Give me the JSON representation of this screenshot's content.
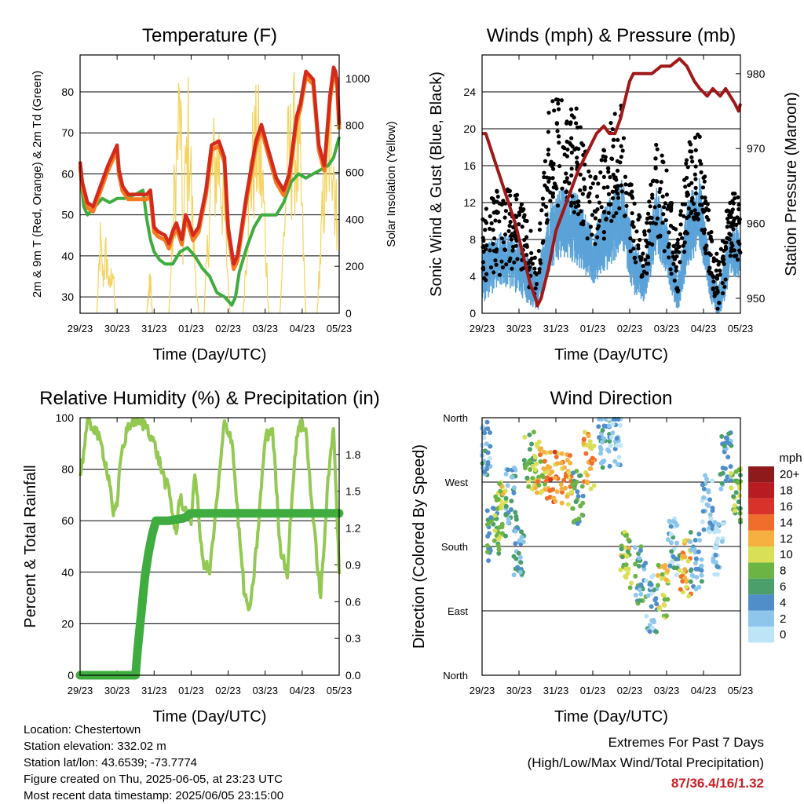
{
  "panels": {
    "temperature": {
      "title": "Temperature (F)",
      "xlabel": "Time (Day/UTC)",
      "ylabel_left": "2m & 9m T (Red, Orange) & 2m Td (Green)",
      "ylabel_right": "Solar Insolation (Yellow)"
    },
    "winds": {
      "title": "Winds (mph) & Pressure (mb)",
      "xlabel": "Time (Day/UTC)",
      "ylabel_left": "Sonic Wind & Gust (Blue, Black)",
      "ylabel_right": "Station Pressure (Maroon)"
    },
    "humidity": {
      "title": "Relative Humidity (%) & Precipitation (in)",
      "xlabel": "Time (Day/UTC)",
      "ylabel_left": "Percent & Total Rainfall"
    },
    "direction": {
      "title": "Wind Direction",
      "xlabel": "Time (Day/UTC)",
      "ylabel_left": "Direction (Colored By Speed)",
      "legend_title": "mph"
    }
  },
  "x_ticks": [
    "29/23",
    "30/23",
    "31/23",
    "01/23",
    "02/23",
    "03/23",
    "04/23",
    "05/23"
  ],
  "footer": {
    "location": "Location: Chestertown",
    "elevation": "Station elevation: 332.02 m",
    "latlon": "Station lat/lon: 43.6539; -73.7774",
    "created": "Figure created on Thu, 2025-06-05, at 23:23 UTC",
    "recent": "Most recent data timestamp: 2025/06/05 23:15:00"
  },
  "extremes": {
    "title": "Extremes For Past 7 Days",
    "subtitle": "(High/Low/Max Wind/Total Precipitation)",
    "values": "87/36.4/16/1.32"
  },
  "chart_data": [
    {
      "type": "line",
      "id": "temperature",
      "x_range_days": [
        0,
        7
      ],
      "ylim": [
        26,
        89
      ],
      "yticks": [
        30,
        40,
        50,
        60,
        70,
        80
      ],
      "y2lim": [
        0,
        1100
      ],
      "y2ticks": [
        0,
        200,
        400,
        600,
        800,
        1000
      ],
      "colors": {
        "t2m": "#d42a1c",
        "t9m": "#f47b20",
        "td": "#3fac3f",
        "solar": "#f4d35e"
      },
      "series": [
        {
          "key": "t2m",
          "x": [
            0,
            0.06,
            0.2,
            0.35,
            0.55,
            0.75,
            0.95,
            1.0,
            1.05,
            1.15,
            1.3,
            1.5,
            1.7,
            1.8,
            1.9,
            2.0,
            2.1,
            2.3,
            2.4,
            2.5,
            2.6,
            2.75,
            2.85,
            2.95,
            3.05,
            3.2,
            3.4,
            3.55,
            3.75,
            3.9,
            4.0,
            4.15,
            4.25,
            4.5,
            4.75,
            4.9,
            5.05,
            5.3,
            5.5,
            5.65,
            5.85,
            5.95,
            6.1,
            6.3,
            6.45,
            6.6,
            6.75,
            6.85,
            6.9,
            6.95,
            7.0
          ],
          "values": [
            63,
            58,
            53,
            52,
            57,
            62,
            66,
            67,
            61,
            57,
            55,
            55,
            55,
            55,
            56,
            47,
            46,
            45,
            43,
            46,
            48,
            44,
            50,
            48,
            45,
            47,
            56,
            67,
            68,
            64,
            47,
            38,
            40,
            55,
            68,
            72,
            67,
            59,
            56,
            60,
            74,
            77,
            85,
            83,
            67,
            62,
            79,
            86,
            85,
            82,
            72
          ]
        },
        {
          "key": "td",
          "x": [
            0,
            0.1,
            0.2,
            0.4,
            0.6,
            0.8,
            1.0,
            1.2,
            1.5,
            1.7,
            1.8,
            1.9,
            2.0,
            2.15,
            2.3,
            2.5,
            2.7,
            2.9,
            3.1,
            3.3,
            3.5,
            3.7,
            3.9,
            4.1,
            4.2,
            4.3,
            4.5,
            4.7,
            4.9,
            5.1,
            5.3,
            5.5,
            5.7,
            5.9,
            6.1,
            6.3,
            6.5,
            6.7,
            6.85,
            7.0
          ],
          "values": [
            61,
            52,
            50,
            52,
            54,
            53,
            54,
            54,
            55,
            56,
            49,
            44,
            41,
            39,
            38,
            38,
            41,
            42,
            40,
            37,
            35,
            31,
            30,
            28,
            30,
            36,
            42,
            47,
            50,
            50,
            50,
            53,
            58,
            60,
            59,
            60,
            61,
            62,
            64,
            69
          ]
        },
        {
          "key": "solar",
          "bursts": [
            {
              "x": [
                0.45,
                0.55,
                0.62,
                0.7,
                0.8,
                0.88,
                0.95
              ],
              "values": [
                0,
                350,
                180,
                300,
                120,
                250,
                0
              ]
            },
            {
              "x": [
                1.8,
                1.9,
                1.95
              ],
              "values": [
                0,
                200,
                0
              ]
            },
            {
              "x": [
                2.4,
                2.55,
                2.7,
                2.78,
                2.85,
                2.95,
                3.05,
                3.2
              ],
              "values": [
                0,
                600,
                1050,
                350,
                700,
                950,
                400,
                0
              ]
            },
            {
              "x": [
                3.35,
                3.55,
                3.75,
                3.9,
                4.05
              ],
              "values": [
                0,
                700,
                800,
                500,
                0
              ]
            },
            {
              "x": [
                4.4,
                4.6,
                4.8,
                4.95,
                5.1
              ],
              "values": [
                0,
                700,
                860,
                600,
                0
              ]
            },
            {
              "x": [
                5.4,
                5.6,
                5.8,
                5.95,
                6.1
              ],
              "values": [
                0,
                750,
                880,
                700,
                0
              ]
            },
            {
              "x": [
                6.4,
                6.6,
                6.8,
                6.95
              ],
              "values": [
                0,
                650,
                980,
                400
              ]
            }
          ]
        }
      ]
    },
    {
      "type": "scatter",
      "id": "winds",
      "x_range_days": [
        0,
        7
      ],
      "ylim": [
        0,
        28
      ],
      "yticks": [
        0,
        4,
        8,
        12,
        16,
        20,
        24
      ],
      "y2lim": [
        948,
        982.5
      ],
      "y2ticks": [
        950,
        960,
        970,
        980
      ],
      "colors": {
        "wind": "#5ba3d8",
        "gust": "#000000",
        "pressure": "#a01818"
      },
      "series": [
        {
          "key": "pressure",
          "x": [
            0,
            0.1,
            0.3,
            0.5,
            0.7,
            0.9,
            1.1,
            1.3,
            1.45,
            1.5,
            1.6,
            1.8,
            2.0,
            2.3,
            2.6,
            2.9,
            3.1,
            3.3,
            3.45,
            3.6,
            3.75,
            3.9,
            4.0,
            4.1,
            4.3,
            4.6,
            4.85,
            5.1,
            5.35,
            5.55,
            5.75,
            5.9,
            6.1,
            6.25,
            6.45,
            6.6,
            6.85,
            6.95,
            7.0
          ],
          "values": [
            972,
            972,
            969,
            966,
            963,
            960,
            956,
            952,
            950,
            949,
            950,
            954,
            959,
            963,
            967,
            970,
            972,
            973,
            972,
            972,
            974,
            977,
            979,
            980,
            980,
            980,
            981,
            981,
            982,
            981,
            979,
            978,
            977,
            978,
            977,
            978,
            976,
            975,
            976
          ]
        },
        {
          "key": "wind_envelope",
          "x": [
            0,
            0.5,
            1.0,
            1.5,
            1.8,
            2.2,
            2.6,
            3.0,
            3.5,
            3.8,
            4.1,
            4.4,
            4.7,
            5.0,
            5.3,
            5.6,
            5.9,
            6.2,
            6.4,
            6.7,
            7.0
          ],
          "mean": [
            4,
            6,
            5,
            2,
            8,
            10,
            9,
            6,
            9,
            11,
            5,
            3,
            10,
            7,
            2,
            9,
            11,
            3,
            1,
            6,
            7
          ],
          "spread": [
            3,
            3,
            3,
            2,
            4,
            4,
            4,
            3,
            4,
            4,
            3,
            2,
            4,
            3,
            2,
            4,
            4,
            2,
            2,
            3,
            3
          ]
        },
        {
          "key": "gust_envelope",
          "x": [
            0,
            0.5,
            1.0,
            1.5,
            1.8,
            2.2,
            2.6,
            3.0,
            3.5,
            3.8,
            4.1,
            4.4,
            4.7,
            5.0,
            5.3,
            5.6,
            5.9,
            6.2,
            6.4,
            6.7,
            7.0
          ],
          "mean": [
            7,
            9,
            9,
            4,
            17,
            18,
            16,
            10,
            15,
            17,
            9,
            6,
            14,
            11,
            5,
            14,
            15,
            6,
            3,
            9,
            10
          ],
          "spread": [
            4,
            5,
            4,
            3,
            6,
            6,
            6,
            4,
            6,
            6,
            4,
            3,
            5,
            5,
            3,
            5,
            5,
            3,
            3,
            4,
            4
          ]
        }
      ]
    },
    {
      "type": "line",
      "id": "humidity",
      "x_range_days": [
        0,
        7
      ],
      "ylim": [
        0,
        100
      ],
      "yticks": [
        0,
        20,
        40,
        60,
        80,
        100
      ],
      "y2lim": [
        0,
        2.1
      ],
      "y2ticks": [
        0.0,
        0.3,
        0.6,
        0.9,
        1.2,
        1.5,
        1.8
      ],
      "colors": {
        "rh": "#93c953",
        "precip": "#3fac3f"
      },
      "series": [
        {
          "key": "rh",
          "x": [
            0,
            0.05,
            0.2,
            0.4,
            0.6,
            0.8,
            0.9,
            1.0,
            1.1,
            1.3,
            1.5,
            1.6,
            1.8,
            2.0,
            2.2,
            2.3,
            2.4,
            2.5,
            2.6,
            2.7,
            2.8,
            3.0,
            3.1,
            3.3,
            3.5,
            3.7,
            3.9,
            4.1,
            4.3,
            4.45,
            4.6,
            4.8,
            5.0,
            5.2,
            5.4,
            5.6,
            5.75,
            5.9,
            6.1,
            6.3,
            6.5,
            6.7,
            6.85,
            7.0
          ],
          "values": [
            78,
            82,
            98,
            96,
            88,
            75,
            63,
            65,
            85,
            97,
            99,
            98,
            97,
            90,
            80,
            75,
            72,
            62,
            55,
            70,
            65,
            60,
            80,
            45,
            40,
            68,
            98,
            92,
            55,
            30,
            25,
            55,
            92,
            96,
            50,
            40,
            75,
            98,
            95,
            60,
            30,
            75,
            98,
            40
          ]
        },
        {
          "key": "precip",
          "x": [
            0,
            1.5,
            1.55,
            1.65,
            1.75,
            1.85,
            1.95,
            2.05,
            2.2,
            2.4,
            2.6,
            2.8,
            3.0,
            3.2,
            7.0
          ],
          "values": [
            0,
            0,
            0.2,
            0.5,
            0.8,
            1.0,
            1.15,
            1.26,
            1.26,
            1.26,
            1.27,
            1.28,
            1.32,
            1.32,
            1.32
          ]
        }
      ]
    },
    {
      "type": "scatter",
      "id": "direction",
      "x_range_days": [
        0,
        7
      ],
      "ylim": [
        0,
        360
      ],
      "ytick_labels": [
        "North",
        "East",
        "South",
        "West",
        "North"
      ],
      "yticks": [
        0,
        90,
        180,
        270,
        360
      ],
      "legend_values": [
        "0",
        "2",
        "4",
        "6",
        "8",
        "10",
        "12",
        "14",
        "16",
        "18",
        "20+"
      ],
      "legend_colors": [
        "#bde4f7",
        "#8dc6ea",
        "#4f8ec9",
        "#4a9f6a",
        "#6cb444",
        "#d9df56",
        "#f6b040",
        "#f06d2c",
        "#d8322a",
        "#b81c22",
        "#8f1a1c"
      ],
      "series": [
        {
          "key": "clusters",
          "x_center": [
            0.1,
            0.3,
            0.5,
            0.8,
            1.0,
            1.3,
            1.6,
            1.9,
            2.3,
            2.6,
            2.9,
            3.3,
            3.6,
            3.9,
            4.3,
            4.6,
            4.9,
            5.2,
            5.5,
            5.8,
            6.1,
            6.4,
            6.6,
            6.9
          ],
          "dir_center": [
            320,
            200,
            230,
            250,
            170,
            300,
            290,
            280,
            270,
            250,
            300,
            330,
            330,
            160,
            140,
            100,
            120,
            180,
            150,
            160,
            240,
            180,
            300,
            250
          ],
          "speed": [
            3,
            6,
            9,
            4,
            4,
            8,
            11,
            13,
            12,
            6,
            12,
            4,
            2,
            9,
            5,
            3,
            10,
            3,
            12,
            4,
            2,
            1,
            4,
            8
          ]
        }
      ]
    }
  ]
}
